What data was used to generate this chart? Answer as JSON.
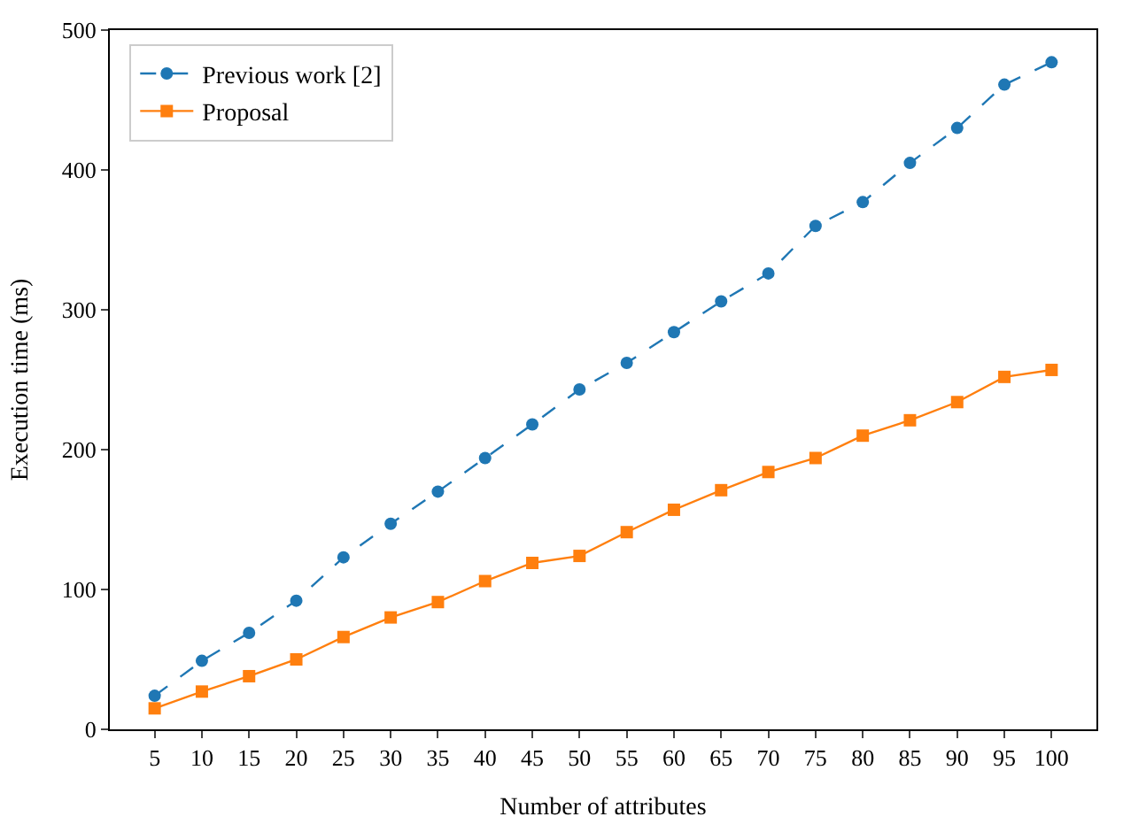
{
  "chart_data": {
    "type": "line",
    "xlabel": "Number of attributes",
    "ylabel": "Execution time (ms)",
    "x": [
      5,
      10,
      15,
      20,
      25,
      30,
      35,
      40,
      45,
      50,
      55,
      60,
      65,
      70,
      75,
      80,
      85,
      90,
      95,
      100
    ],
    "series": [
      {
        "name": "Previous work [2]",
        "color": "#1f77b4",
        "marker": "circle",
        "line_style": "dashed",
        "values": [
          24,
          49,
          69,
          92,
          123,
          147,
          170,
          194,
          218,
          243,
          262,
          284,
          306,
          326,
          360,
          377,
          405,
          430,
          461,
          477
        ]
      },
      {
        "name": "Proposal",
        "color": "#ff7f0e",
        "marker": "square",
        "line_style": "solid",
        "values": [
          15,
          27,
          38,
          50,
          66,
          80,
          91,
          106,
          119,
          124,
          141,
          157,
          171,
          184,
          194,
          210,
          221,
          234,
          252,
          257
        ]
      }
    ],
    "xlim": [
      0.25,
      104.75
    ],
    "xticks": [
      5,
      10,
      15,
      20,
      25,
      30,
      35,
      40,
      45,
      50,
      55,
      60,
      65,
      70,
      75,
      80,
      85,
      90,
      95,
      100
    ],
    "ylim": [
      0,
      500
    ],
    "yticks": [
      0,
      100,
      200,
      300,
      400,
      500
    ],
    "legend": "top left"
  }
}
